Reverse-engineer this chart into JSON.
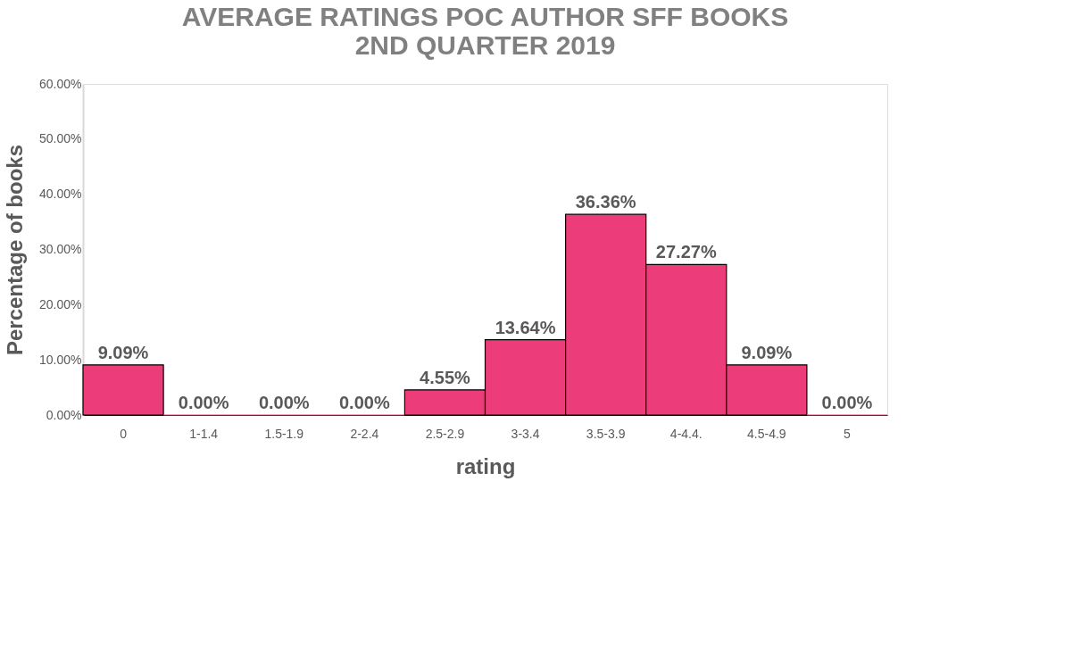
{
  "chart_data": {
    "type": "bar",
    "title": [
      "AVERAGE RATINGS POC AUTHOR SFF BOOKS",
      "2ND QUARTER 2019"
    ],
    "xlabel": "rating",
    "ylabel": "Percentage of books",
    "categories": [
      "0",
      "1-1.4",
      "1.5-1.9",
      "2-2.4",
      "2.5-2.9",
      "3-3.4",
      "3.5-3.9",
      "4-4.4.",
      "4.5-4.9",
      "5"
    ],
    "values": [
      9.09,
      0,
      0,
      0,
      4.55,
      13.64,
      36.36,
      27.27,
      9.09,
      0
    ],
    "value_labels": [
      "9.09%",
      "0.00%",
      "0.00%",
      "0.00%",
      "4.55%",
      "13.64%",
      "36.36%",
      "27.27%",
      "9.09%",
      "0.00%"
    ],
    "color": "#ec3d7a",
    "ylim": [
      0,
      60
    ],
    "yticks": [
      {
        "value": 0,
        "label": "0.00%"
      },
      {
        "value": 10,
        "label": "10.00%"
      },
      {
        "value": 20,
        "label": "20.00%"
      },
      {
        "value": 30,
        "label": "30.00%"
      },
      {
        "value": 40,
        "label": "40.00%"
      },
      {
        "value": 50,
        "label": "50.00%"
      },
      {
        "value": 60,
        "label": "60.00%"
      }
    ],
    "grid": false
  }
}
